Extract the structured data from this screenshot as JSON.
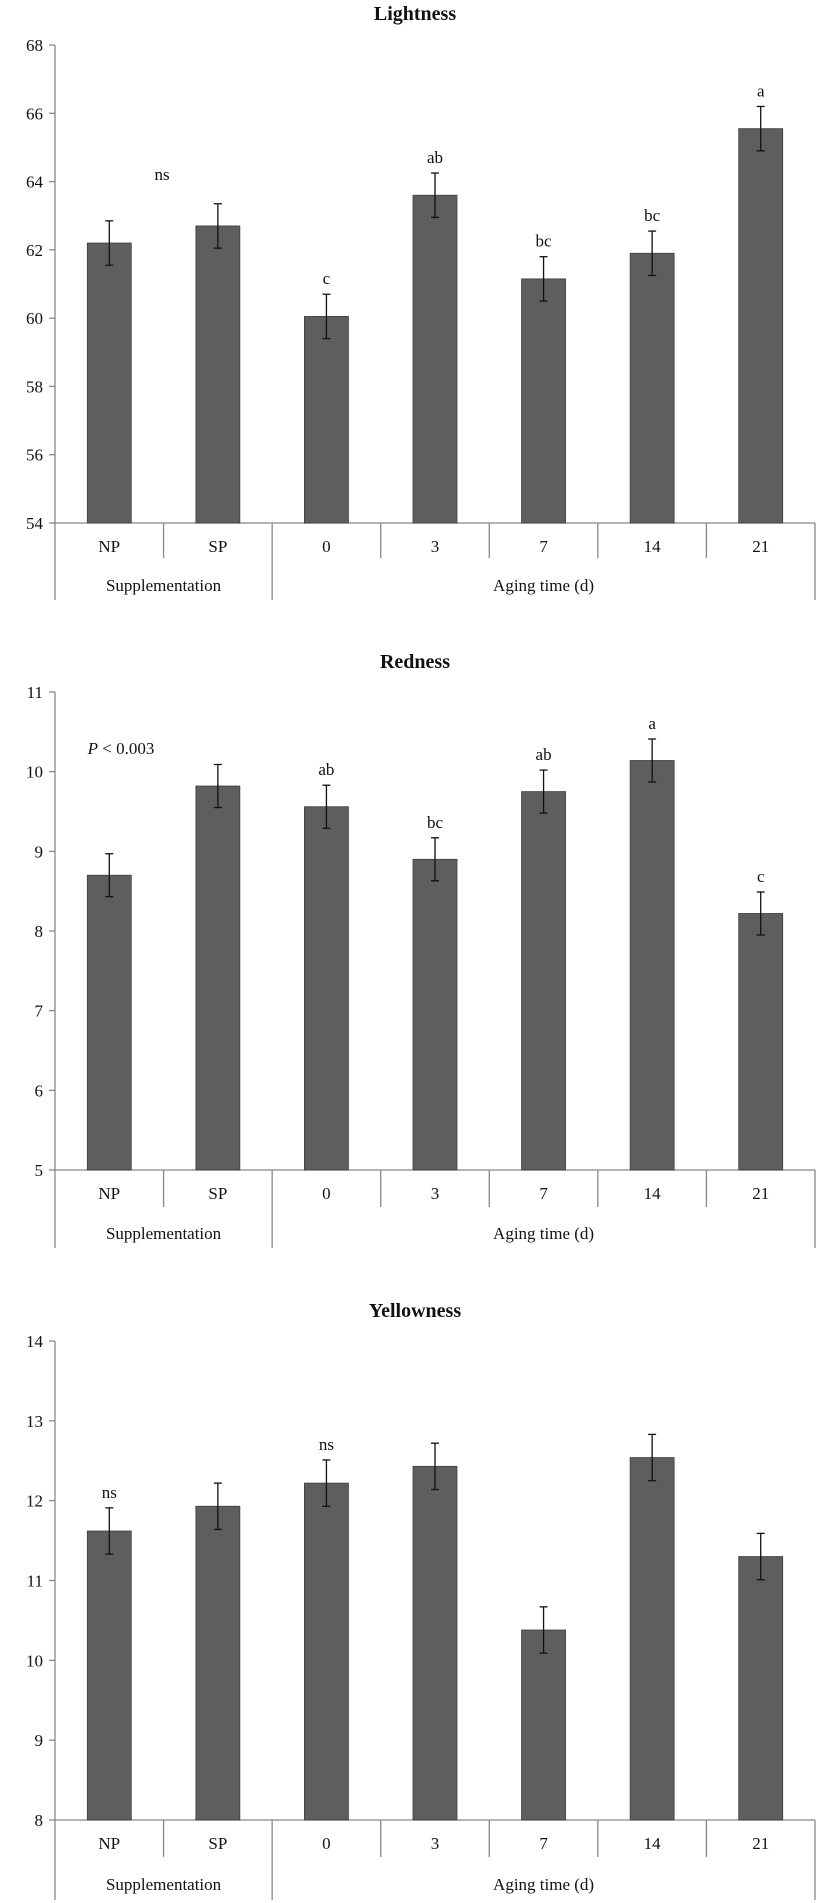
{
  "colors": {
    "bar": "#5e5e5e",
    "axis": "#888888",
    "text": "#111111"
  },
  "chart_data": [
    {
      "type": "bar",
      "title": "Lightness",
      "categories": [
        "NP",
        "SP",
        "0",
        "3",
        "7",
        "14",
        "21"
      ],
      "groups": [
        {
          "label": "Supplementation",
          "span": 2
        },
        {
          "label": "Aging time (d)",
          "span": 5
        }
      ],
      "values": [
        62.2,
        62.7,
        60.05,
        63.6,
        61.15,
        61.9,
        65.55
      ],
      "errors": [
        0.65,
        0.65,
        0.65,
        0.65,
        0.65,
        0.65,
        0.65
      ],
      "labels": [
        "",
        "",
        "c",
        "ab",
        "bc",
        "bc",
        "a"
      ],
      "note": "ns",
      "ylim": [
        54,
        68
      ],
      "yticks": [
        54,
        56,
        58,
        60,
        62,
        64,
        66,
        68
      ]
    },
    {
      "type": "bar",
      "title": "Redness",
      "categories": [
        "NP",
        "SP",
        "0",
        "3",
        "7",
        "14",
        "21"
      ],
      "groups": [
        {
          "label": "Supplementation",
          "span": 2
        },
        {
          "label": "Aging time (d)",
          "span": 5
        }
      ],
      "values": [
        8.7,
        9.82,
        9.56,
        8.9,
        9.75,
        10.14,
        8.22
      ],
      "errors": [
        0.27,
        0.27,
        0.27,
        0.27,
        0.27,
        0.27,
        0.27
      ],
      "labels": [
        "",
        "",
        "ab",
        "bc",
        "ab",
        "a",
        "c"
      ],
      "note_italic": "P",
      "note": " < 0.003",
      "ylim": [
        5,
        11
      ],
      "yticks": [
        5,
        6,
        7,
        8,
        9,
        10,
        11
      ]
    },
    {
      "type": "bar",
      "title": "Yellowness",
      "categories": [
        "NP",
        "SP",
        "0",
        "3",
        "7",
        "14",
        "21"
      ],
      "groups": [
        {
          "label": "Supplementation",
          "span": 2
        },
        {
          "label": "Aging time (d)",
          "span": 5
        }
      ],
      "values": [
        11.62,
        11.93,
        12.22,
        12.43,
        10.38,
        12.54,
        11.3
      ],
      "errors": [
        0.29,
        0.29,
        0.29,
        0.29,
        0.29,
        0.29,
        0.29
      ],
      "labels": [
        "ns",
        "",
        "ns",
        "",
        "",
        "",
        ""
      ],
      "ylim": [
        8,
        14
      ],
      "yticks": [
        8,
        9,
        10,
        11,
        12,
        13,
        14
      ]
    }
  ]
}
